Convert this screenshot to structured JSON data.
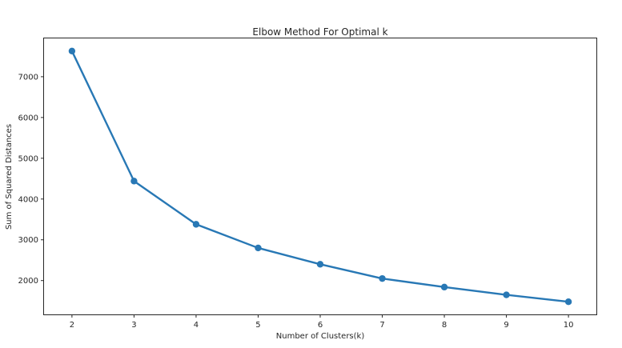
{
  "chart_data": {
    "type": "line",
    "title": "Elbow Method For Optimal k",
    "xlabel": "Number of Clusters(k)",
    "ylabel": "Sum of Squared Distances",
    "x": [
      2,
      3,
      4,
      5,
      6,
      7,
      8,
      9,
      10
    ],
    "series": [
      {
        "name": "Sum of Squared Distances",
        "values": [
          7630,
          4440,
          3380,
          2800,
          2400,
          2050,
          1840,
          1650,
          1480
        ],
        "color": "#2878b5"
      }
    ],
    "x_ticks": [
      "2",
      "3",
      "4",
      "5",
      "6",
      "7",
      "8",
      "9",
      "10"
    ],
    "y_ticks": [
      "2000",
      "3000",
      "4000",
      "5000",
      "6000",
      "7000"
    ],
    "y_tick_values": [
      2000,
      3000,
      4000,
      5000,
      6000,
      7000
    ],
    "xlim": [
      1.55,
      10.45
    ],
    "ylim": [
      1170,
      7940
    ],
    "grid": false,
    "legend": "none"
  }
}
